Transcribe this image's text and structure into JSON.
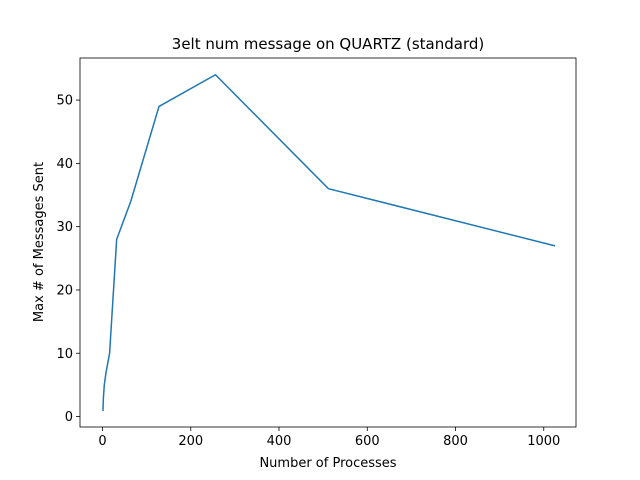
{
  "chart_data": {
    "type": "line",
    "title": "3elt num message on QUARTZ (standard)",
    "xlabel": "Number of Processes",
    "ylabel": "Max # of Messages Sent",
    "xlim": [
      -51.05,
      1073.05
    ],
    "ylim": [
      -1.65,
      56.65
    ],
    "xticks": [
      0,
      200,
      400,
      600,
      800,
      1000
    ],
    "yticks": [
      0,
      10,
      20,
      30,
      40,
      50
    ],
    "grid": false,
    "legend": "none",
    "series": [
      {
        "color": "#1f77b4",
        "x": [
          1,
          2,
          4,
          8,
          16,
          32,
          64,
          128,
          256,
          512,
          1024
        ],
        "y": [
          1,
          3,
          5,
          7,
          10,
          28,
          34,
          49,
          54,
          36,
          27
        ]
      }
    ]
  }
}
